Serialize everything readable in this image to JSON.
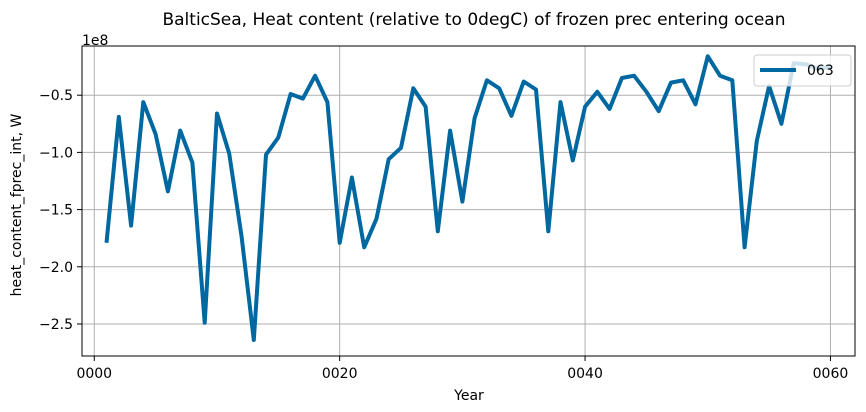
{
  "chart_data": {
    "type": "line",
    "title": "BalticSea, Heat content (relative to 0degC) of frozen prec entering ocean",
    "xlabel": "Year",
    "ylabel": "heat_content_fprec_int, W",
    "y_offset_text": "1e8",
    "x_tick_labels": [
      "0000",
      "0020",
      "0040",
      "0060"
    ],
    "y_tick_labels": [
      "−2.5",
      "−2.0",
      "−1.5",
      "−1.0",
      "−0.5"
    ],
    "xlim": [
      -1,
      62
    ],
    "ylim": [
      -2.78,
      -0.07
    ],
    "grid": true,
    "legend_position": "top-right",
    "series": [
      {
        "name": "063",
        "color": "#0068a0",
        "x": [
          1,
          2,
          3,
          4,
          5,
          6,
          7,
          8,
          9,
          10,
          11,
          12,
          13,
          14,
          15,
          16,
          17,
          18,
          19,
          20,
          21,
          22,
          23,
          24,
          25,
          26,
          27,
          28,
          29,
          30,
          31,
          32,
          33,
          34,
          35,
          36,
          37,
          38,
          39,
          40,
          41,
          42,
          43,
          44,
          45,
          46,
          47,
          48,
          49,
          50,
          51,
          52,
          53,
          54,
          55,
          56,
          57,
          58,
          59,
          60
        ],
        "values": [
          -1.79,
          -0.69,
          -1.64,
          -0.56,
          -0.84,
          -1.34,
          -0.81,
          -1.09,
          -2.49,
          -0.66,
          -1.01,
          -1.73,
          -2.64,
          -1.02,
          -0.87,
          -0.49,
          -0.53,
          -0.33,
          -0.56,
          -1.79,
          -1.22,
          -1.83,
          -1.58,
          -1.06,
          -0.96,
          -0.44,
          -0.6,
          -1.69,
          -0.81,
          -1.43,
          -0.7,
          -0.37,
          -0.44,
          -0.68,
          -0.38,
          -0.45,
          -1.69,
          -0.56,
          -1.07,
          -0.6,
          -0.47,
          -0.62,
          -0.35,
          -0.33,
          -0.47,
          -0.64,
          -0.39,
          -0.37,
          -0.58,
          -0.16,
          -0.33,
          -0.37,
          -1.83,
          -0.9,
          -0.42,
          -0.75,
          -0.22,
          -0.23,
          -0.27,
          -0.25
        ]
      }
    ]
  }
}
